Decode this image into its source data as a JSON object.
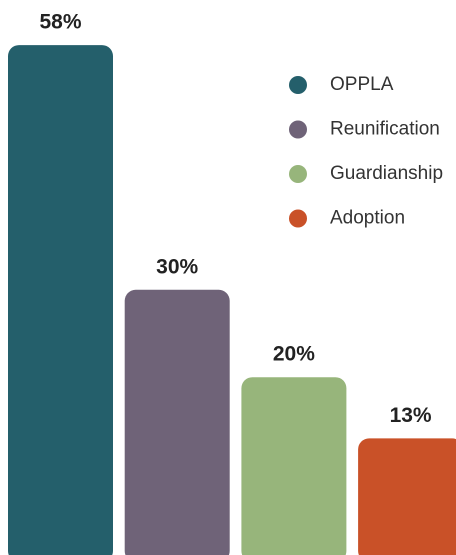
{
  "chart_data": {
    "type": "bar",
    "categories": [
      "OPPLA",
      "Reunification",
      "Guardianship",
      "Adoption"
    ],
    "values": [
      58,
      30,
      20,
      13
    ],
    "value_labels": [
      "58%",
      "30%",
      "20%",
      "13%"
    ],
    "colors": [
      "#245f6b",
      "#6f6378",
      "#97b57b",
      "#c95128"
    ]
  }
}
